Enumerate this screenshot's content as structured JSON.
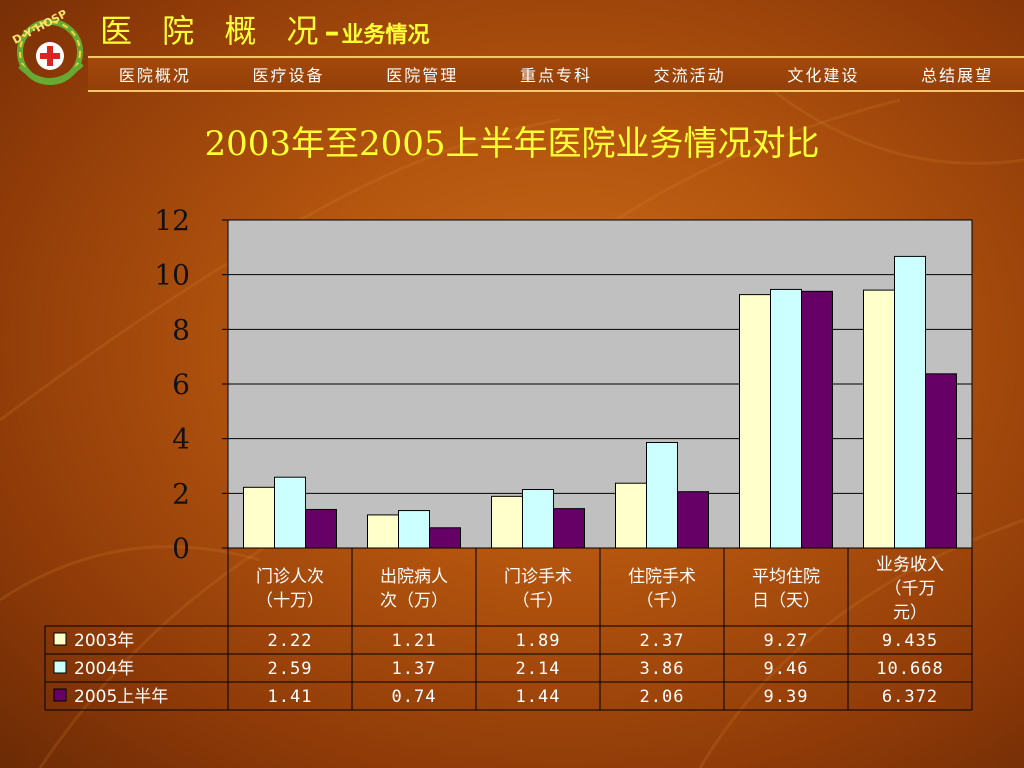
{
  "header": {
    "title": "医 院 概 况",
    "separator": "–",
    "subtitle": "业务情况",
    "logo_text": "D·Y·HOSP"
  },
  "nav": {
    "items": [
      "医院概况",
      "医疗设备",
      "医院管理",
      "重点专科",
      "交流活动",
      "文化建设",
      "总结展望"
    ]
  },
  "colors": {
    "title": "#ffff33",
    "background": "#b5560f",
    "plot_background": "#c0c0c0",
    "series_2003": "#ffffcc",
    "series_2004": "#ccffff",
    "series_2005": "#660066"
  },
  "chart_data": {
    "type": "bar",
    "title": "2003年至2005上半年医院业务情况对比",
    "categories": [
      [
        "门诊人次",
        "（十万）"
      ],
      [
        "出院病人",
        "次（万）"
      ],
      [
        "门诊手术",
        "（千）"
      ],
      [
        "住院手术",
        "（千）"
      ],
      [
        "平均住院",
        "日（天）"
      ],
      [
        "业务收入",
        "（千万",
        "元）"
      ]
    ],
    "series": [
      {
        "name": "2003年",
        "color": "#ffffcc",
        "values": [
          2.22,
          1.21,
          1.89,
          2.37,
          9.27,
          9.435
        ],
        "labels": [
          "2.22",
          "1.21",
          "1.89",
          "2.37",
          "9.27",
          "9.435"
        ]
      },
      {
        "name": "2004年",
        "color": "#ccffff",
        "values": [
          2.59,
          1.37,
          2.14,
          3.86,
          9.46,
          10.668
        ],
        "labels": [
          "2.59",
          "1.37",
          "2.14",
          "3.86",
          "9.46",
          "10.668"
        ]
      },
      {
        "name": "2005上半年",
        "color": "#660066",
        "values": [
          1.41,
          0.74,
          1.44,
          2.06,
          9.39,
          6.372
        ],
        "labels": [
          "1.41",
          "0.74",
          "1.44",
          "2.06",
          "9.39",
          "6.372"
        ]
      }
    ],
    "ylim": [
      0,
      12
    ],
    "yticks": [
      0,
      2,
      4,
      6,
      8,
      10,
      12
    ],
    "grid": true,
    "legend": "data-table"
  }
}
